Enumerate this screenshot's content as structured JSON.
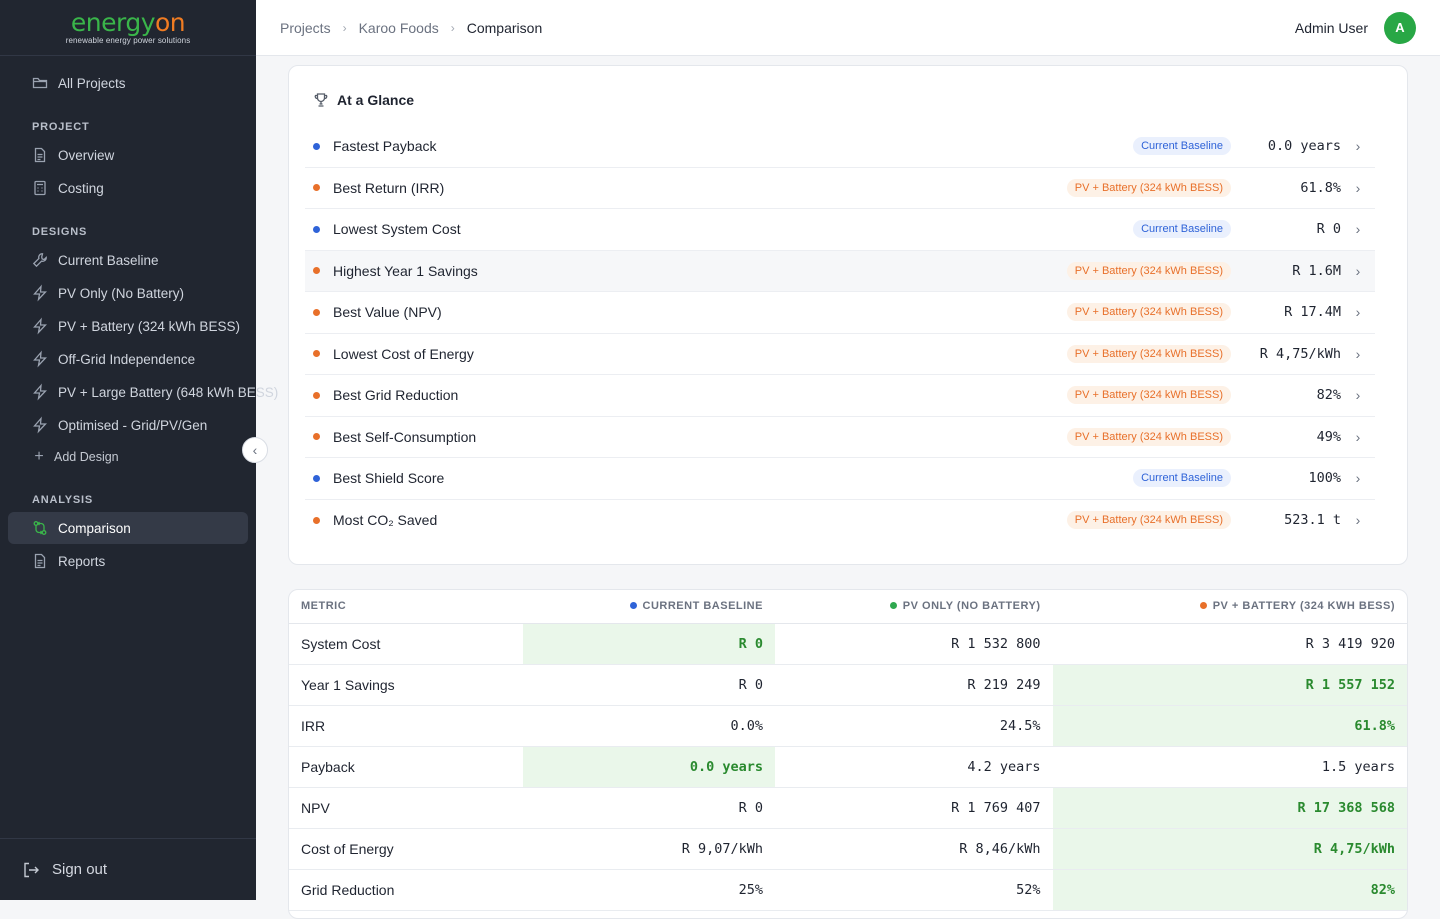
{
  "brand": {
    "logo_text_1": "energy",
    "logo_text_2": "on",
    "tagline": "renewable energy power solutions"
  },
  "sidebar": {
    "all_projects": "All Projects",
    "sections": {
      "project": "PROJECT",
      "designs": "DESIGNS",
      "analysis": "ANALYSIS"
    },
    "project_items": [
      "Overview",
      "Costing"
    ],
    "design_items": [
      "Current Baseline",
      "PV Only (No Battery)",
      "PV + Battery (324 kWh BESS)",
      "Off-Grid Independence",
      "PV + Large Battery (648 kWh BESS)",
      "Optimised - Grid/PV/Gen"
    ],
    "add_design": "Add Design",
    "analysis_items": [
      "Comparison",
      "Reports"
    ],
    "active_item": "Comparison",
    "sign_out": "Sign out"
  },
  "header": {
    "breadcrumbs": [
      "Projects",
      "Karoo Foods",
      "Comparison"
    ],
    "user_name": "Admin User",
    "avatar_initial": "A"
  },
  "glance": {
    "title": "At a Glance",
    "rows": [
      {
        "label": "Fastest Payback",
        "design": "Current Baseline",
        "color": "blue",
        "value": "0.0 years"
      },
      {
        "label": "Best Return (IRR)",
        "design": "PV + Battery (324 kWh BESS)",
        "color": "orange",
        "value": "61.8%"
      },
      {
        "label": "Lowest System Cost",
        "design": "Current Baseline",
        "color": "blue",
        "value": "R 0"
      },
      {
        "label": "Highest Year 1 Savings",
        "design": "PV + Battery (324 kWh BESS)",
        "color": "orange",
        "value": "R 1.6M"
      },
      {
        "label": "Best Value (NPV)",
        "design": "PV + Battery (324 kWh BESS)",
        "color": "orange",
        "value": "R 17.4M"
      },
      {
        "label": "Lowest Cost of Energy",
        "design": "PV + Battery (324 kWh BESS)",
        "color": "orange",
        "value": "R 4,75/kWh"
      },
      {
        "label": "Best Grid Reduction",
        "design": "PV + Battery (324 kWh BESS)",
        "color": "orange",
        "value": "82%"
      },
      {
        "label": "Best Self-Consumption",
        "design": "PV + Battery (324 kWh BESS)",
        "color": "orange",
        "value": "49%"
      },
      {
        "label": "Best Shield Score",
        "design": "Current Baseline",
        "color": "blue",
        "value": "100%"
      },
      {
        "label": "Most CO₂ Saved",
        "design": "PV + Battery (324 kWh BESS)",
        "color": "orange",
        "value": "523.1 t"
      }
    ]
  },
  "comparison": {
    "headers": [
      "METRIC",
      "CURRENT BASELINE",
      "PV ONLY (NO BATTERY)",
      "PV + BATTERY (324 KWH BESS)"
    ],
    "header_colors": [
      "",
      "#2f63d8",
      "#2fa84f",
      "#e8702a"
    ],
    "rows": [
      {
        "metric": "System Cost",
        "values": [
          "R 0",
          "R 1 532 800",
          "R 3 419 920"
        ],
        "best": 0
      },
      {
        "metric": "Year 1 Savings",
        "values": [
          "R 0",
          "R 219 249",
          "R 1 557 152"
        ],
        "best": 2
      },
      {
        "metric": "IRR",
        "values": [
          "0.0%",
          "24.5%",
          "61.8%"
        ],
        "best": 2
      },
      {
        "metric": "Payback",
        "values": [
          "0.0 years",
          "4.2 years",
          "1.5 years"
        ],
        "best": 0
      },
      {
        "metric": "NPV",
        "values": [
          "R 0",
          "R 1 769 407",
          "R 17 368 568"
        ],
        "best": 2
      },
      {
        "metric": "Cost of Energy",
        "values": [
          "R 9,07/kWh",
          "R 8,46/kWh",
          "R 4,75/kWh"
        ],
        "best": 2
      },
      {
        "metric": "Grid Reduction",
        "values": [
          "25%",
          "52%",
          "82%"
        ],
        "best": 2
      }
    ]
  },
  "colors": {
    "blue": "#2f63d8",
    "orange": "#e8702a",
    "green": "#2fa84f"
  }
}
